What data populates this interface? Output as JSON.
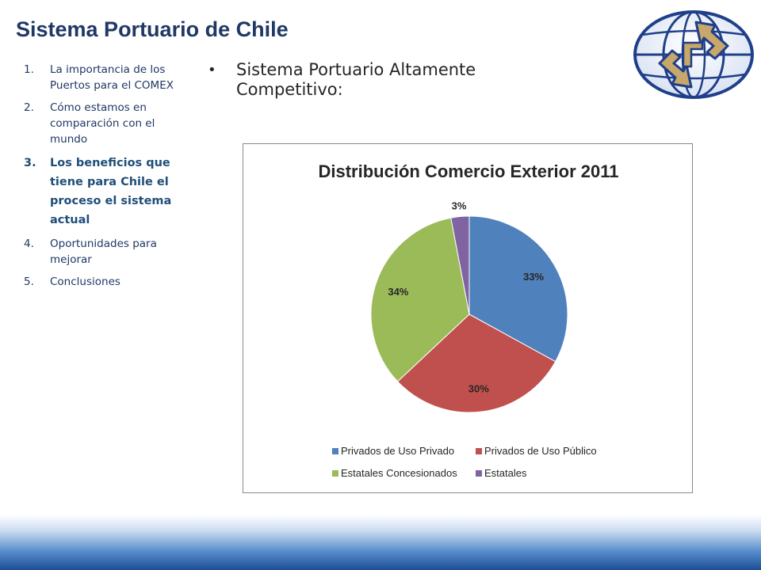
{
  "slide": {
    "title": "Sistema Portuario de Chile"
  },
  "agenda": {
    "items": [
      {
        "num": "1.",
        "label": "La importancia de los Puertos para el COMEX",
        "active": false
      },
      {
        "num": "2.",
        "label": "Cómo estamos en comparación con el mundo",
        "active": false
      },
      {
        "num": "3.",
        "label": "Los beneficios que tiene para Chile el proceso el sistema actual",
        "active": true
      },
      {
        "num": "4.",
        "label": "Oportunidades para mejorar",
        "active": false
      },
      {
        "num": "5.",
        "label": "Conclusiones",
        "active": false
      }
    ]
  },
  "content": {
    "bullet": "•",
    "heading": "Sistema Portuario Altamente Competitivo:"
  },
  "logo": {
    "icon": "globe-arrows-logo-icon",
    "colors": {
      "globe": "#1f3f8a",
      "arrows_fill": "#c7a76a",
      "arrows_outline": "#1f3f8a"
    }
  },
  "colors": {
    "title": "#1f3864",
    "footer": "#1d4e96"
  },
  "chart_data": {
    "type": "pie",
    "title": "Distribución Comercio Exterior 2011",
    "categories": [
      "Privados de Uso Privado",
      "Privados de Uso Público",
      "Estatales Concesionados",
      "Estatales"
    ],
    "values": [
      33,
      30,
      34,
      3
    ],
    "labels": [
      "33%",
      "30%",
      "34%",
      "3%"
    ],
    "colors": [
      "#4f81bd",
      "#c0504d",
      "#9bbb59",
      "#8064a2"
    ],
    "legend_position": "bottom"
  }
}
